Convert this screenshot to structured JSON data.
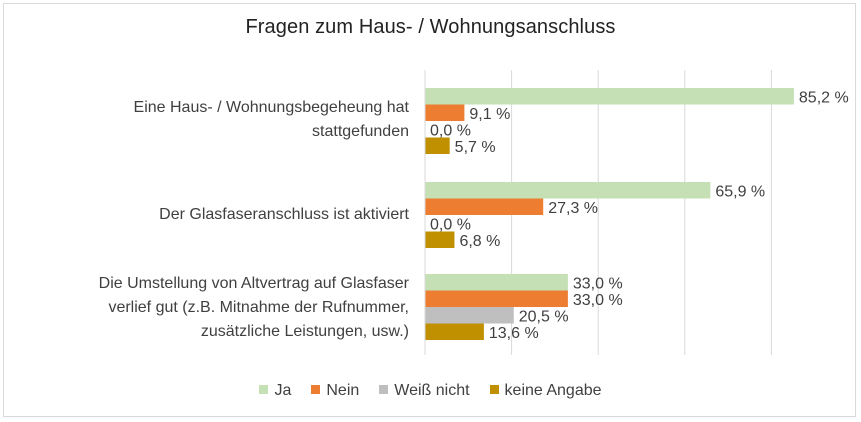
{
  "chart_data": {
    "type": "bar",
    "orientation": "horizontal",
    "title": "Fragen zum Haus- / Wohnungsanschluss",
    "categories": [
      "Eine Haus- / Wohnungsbegeheung hat stattgefunden",
      "Der Glasfaseranschluss ist aktiviert",
      "Die Umstellung von Altvertrag auf Glasfaser verlief gut (z.B. Mitnahme der Rufnummer, zusätzliche Leistungen, usw.)"
    ],
    "series": [
      {
        "name": "Ja",
        "color": "#c5e0b4",
        "values": [
          85.2,
          65.9,
          33.0
        ]
      },
      {
        "name": "Nein",
        "color": "#ed7d31",
        "values": [
          9.1,
          27.3,
          33.0
        ]
      },
      {
        "name": "Weiß nicht",
        "color": "#bfbfbf",
        "values": [
          0.0,
          0.0,
          20.5
        ]
      },
      {
        "name": "keine Angabe",
        "color": "#c09000",
        "values": [
          5.7,
          6.8,
          13.6
        ]
      }
    ],
    "value_suffix": " %",
    "xlim": [
      0,
      100
    ],
    "grid": true,
    "legend_position": "bottom"
  },
  "labels": {
    "cat0_line1": "Eine Haus- / Wohnungsbegeheung hat",
    "cat0_line2": "stattgefunden",
    "cat1_line1": "Der Glasfaseranschluss ist aktiviert",
    "cat2_line1": "Die Umstellung von Altvertrag auf Glasfaser",
    "cat2_line2": "verlief gut (z.B. Mitnahme der Rufnummer,",
    "cat2_line3": "zusätzliche Leistungen, usw.)"
  }
}
